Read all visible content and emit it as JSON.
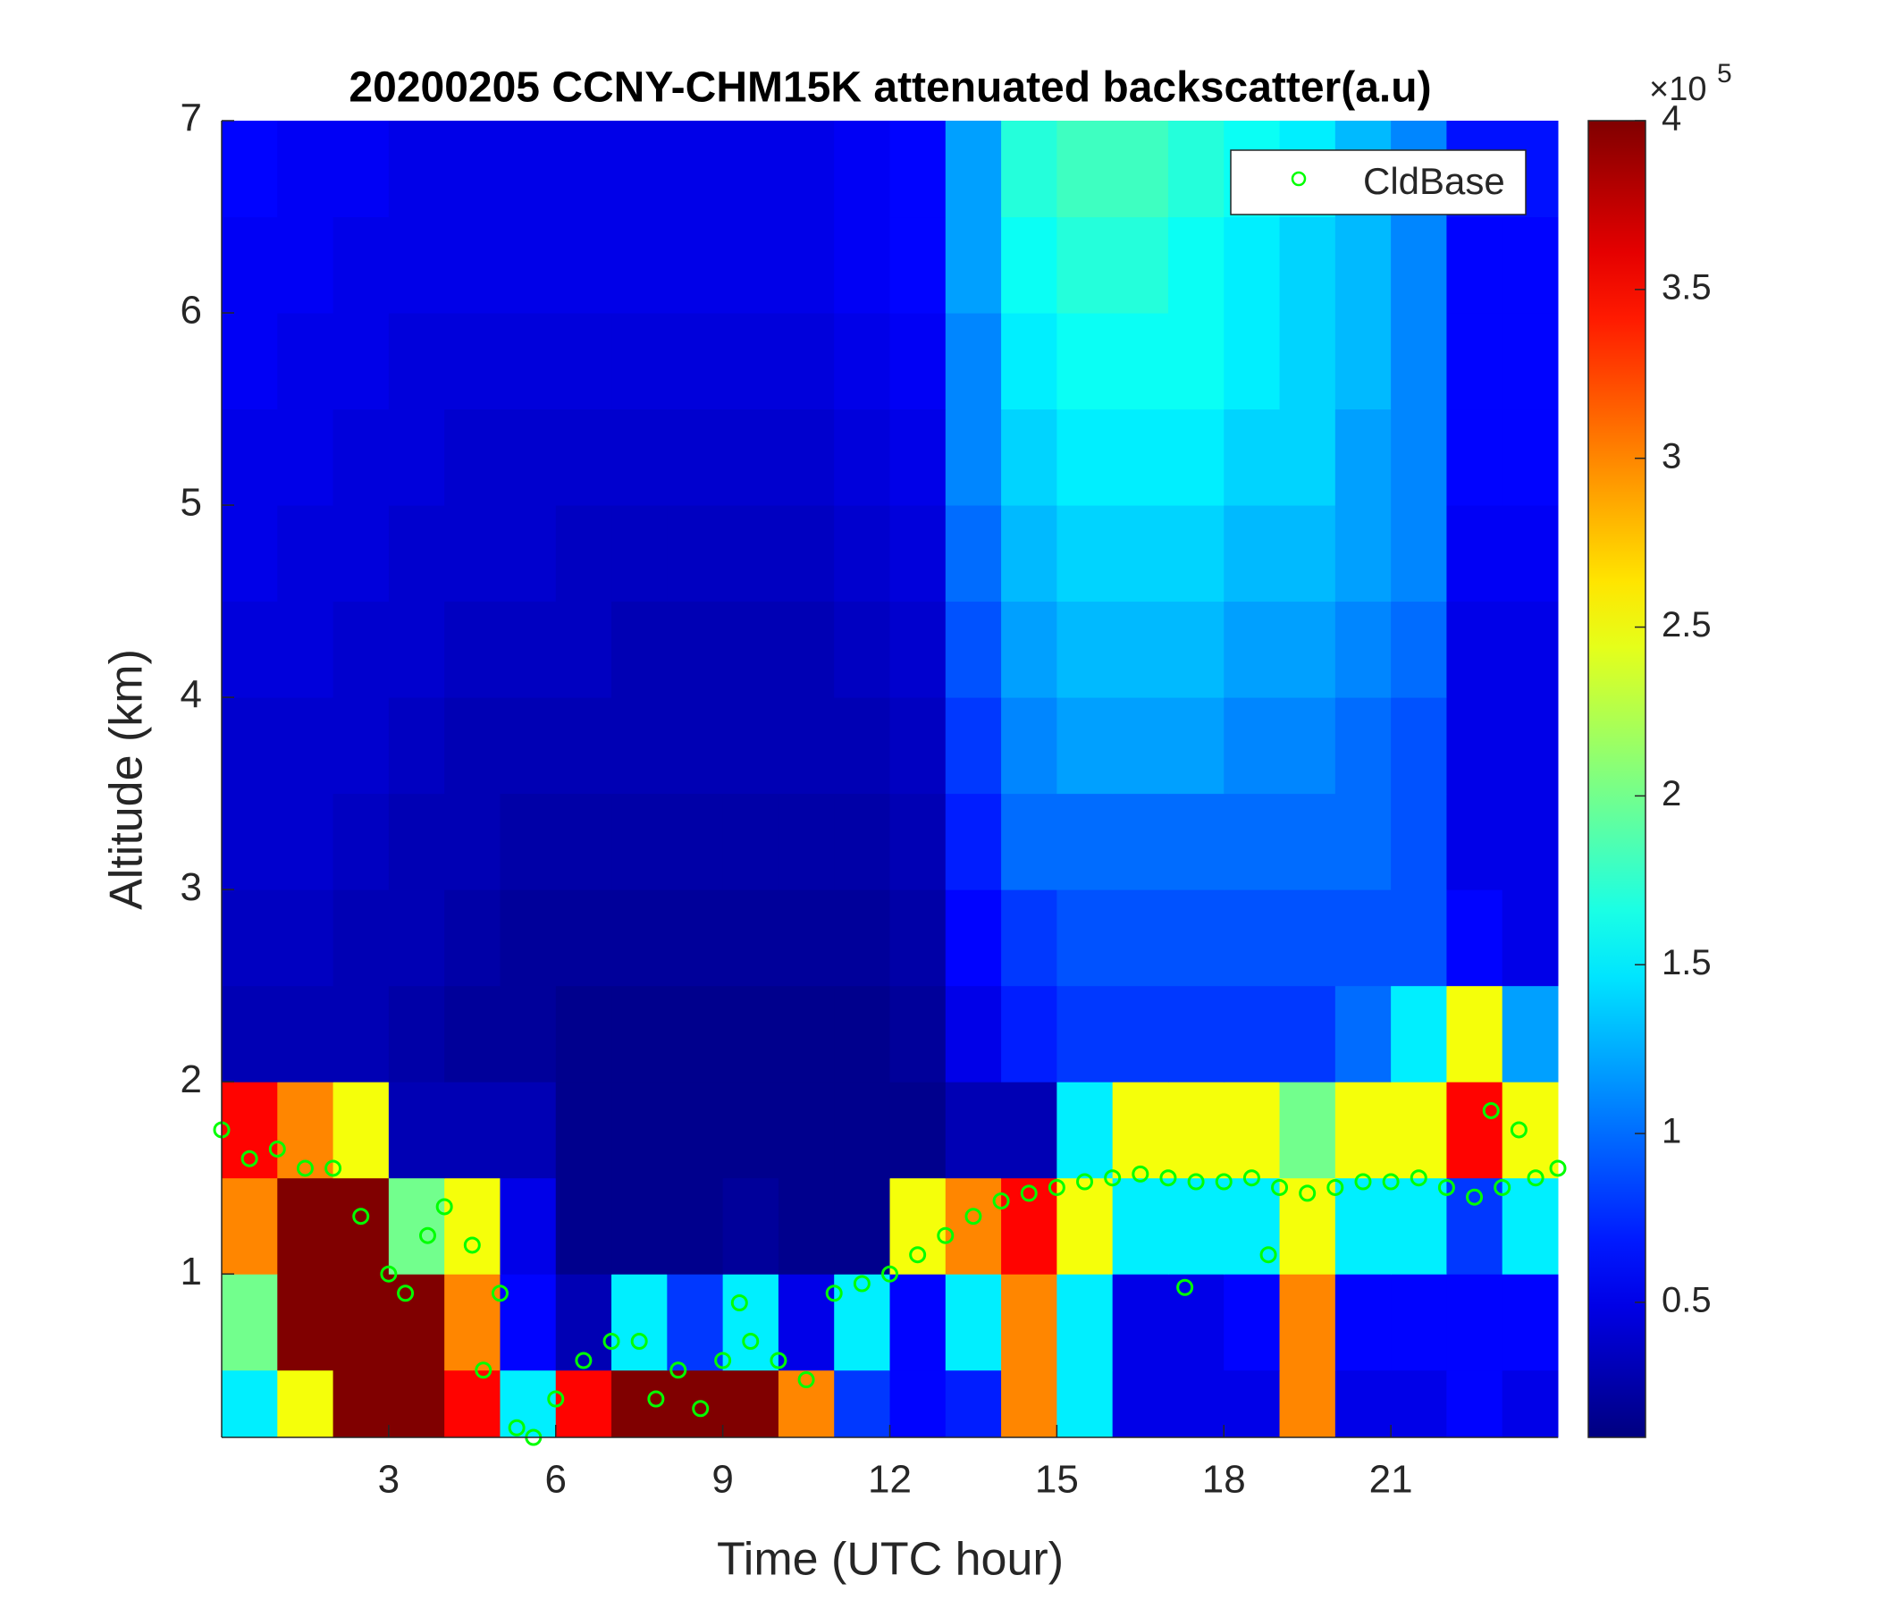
{
  "chart_data": {
    "type": "heatmap",
    "title": "20200205 CCNY-CHM15K attenuated backscatter(a.u)",
    "x_label": "Time (UTC hour)",
    "y_label": "Altitude (km)",
    "xlim": [
      0,
      24
    ],
    "ylim": [
      0.15,
      7
    ],
    "xticks": [
      3,
      6,
      9,
      12,
      15,
      18,
      21
    ],
    "yticks": [
      1,
      2,
      3,
      4,
      5,
      6,
      7
    ],
    "colormap": "jet",
    "clim": [
      0.1,
      4
    ],
    "cticks": [
      0.5,
      1,
      1.5,
      2,
      2.5,
      3,
      3.5,
      4
    ],
    "colorbar_multiplier": {
      "base": "×10",
      "exponent": "5"
    },
    "x_edges": [
      0,
      1,
      2,
      3,
      4,
      5,
      6,
      7,
      8,
      9,
      10,
      11,
      12,
      13,
      14,
      15,
      16,
      17,
      18,
      19,
      20,
      21,
      22,
      23,
      24
    ],
    "y_edges": [
      0.15,
      0.5,
      1,
      1.5,
      2,
      2.5,
      3,
      3.5,
      4,
      4.5,
      5,
      5.5,
      6,
      6.5,
      7
    ],
    "z": [
      [
        1.5,
        2.5,
        4,
        4,
        3.5,
        1.5,
        3.5,
        4,
        4,
        4,
        3,
        0.8,
        0.6,
        0.7,
        3,
        1.5,
        0.5,
        0.5,
        0.5,
        3,
        0.5,
        0.5,
        0.6,
        0.5
      ],
      [
        2,
        4,
        4,
        4,
        3,
        0.6,
        0.3,
        1.5,
        0.8,
        1.5,
        0.5,
        1.5,
        0.6,
        1.5,
        3,
        1.5,
        0.5,
        0.5,
        0.6,
        3,
        0.6,
        0.6,
        0.6,
        0.6
      ],
      [
        3,
        4,
        4,
        2,
        2.5,
        0.5,
        0.15,
        0.15,
        0.15,
        0.2,
        0.15,
        0.15,
        2.5,
        3,
        3.5,
        2.5,
        1.5,
        1.5,
        1.5,
        2.5,
        1.5,
        1.5,
        0.8,
        1.5
      ],
      [
        3.5,
        3,
        2.5,
        0.3,
        0.3,
        0.3,
        0.15,
        0.15,
        0.15,
        0.15,
        0.15,
        0.15,
        0.15,
        0.3,
        0.3,
        1.5,
        2.5,
        2.5,
        2.5,
        2,
        2.5,
        2.5,
        3.5,
        2.5
      ],
      [
        0.3,
        0.3,
        0.3,
        0.25,
        0.2,
        0.2,
        0.15,
        0.15,
        0.15,
        0.15,
        0.15,
        0.15,
        0.2,
        0.5,
        0.7,
        0.8,
        0.8,
        0.8,
        0.8,
        0.8,
        1,
        1.5,
        2.5,
        1.2
      ],
      [
        0.35,
        0.35,
        0.3,
        0.3,
        0.25,
        0.2,
        0.2,
        0.2,
        0.2,
        0.2,
        0.2,
        0.2,
        0.25,
        0.6,
        0.8,
        0.9,
        0.9,
        0.9,
        0.9,
        0.9,
        0.9,
        0.9,
        0.6,
        0.5
      ],
      [
        0.4,
        0.4,
        0.35,
        0.3,
        0.3,
        0.25,
        0.25,
        0.25,
        0.25,
        0.25,
        0.25,
        0.25,
        0.3,
        0.7,
        1,
        1,
        1,
        1,
        1,
        1,
        1,
        0.9,
        0.5,
        0.5
      ],
      [
        0.4,
        0.4,
        0.4,
        0.35,
        0.3,
        0.3,
        0.3,
        0.3,
        0.3,
        0.3,
        0.3,
        0.3,
        0.35,
        0.8,
        1.1,
        1.2,
        1.2,
        1.2,
        1.1,
        1.1,
        1,
        0.9,
        0.5,
        0.5
      ],
      [
        0.45,
        0.45,
        0.4,
        0.4,
        0.35,
        0.35,
        0.35,
        0.3,
        0.3,
        0.3,
        0.3,
        0.35,
        0.4,
        0.9,
        1.2,
        1.3,
        1.3,
        1.3,
        1.2,
        1.2,
        1.1,
        1,
        0.5,
        0.5
      ],
      [
        0.5,
        0.45,
        0.45,
        0.4,
        0.4,
        0.4,
        0.35,
        0.35,
        0.35,
        0.35,
        0.35,
        0.4,
        0.45,
        1,
        1.3,
        1.4,
        1.4,
        1.4,
        1.3,
        1.3,
        1.2,
        1.1,
        0.55,
        0.55
      ],
      [
        0.5,
        0.5,
        0.45,
        0.45,
        0.4,
        0.4,
        0.4,
        0.4,
        0.4,
        0.4,
        0.4,
        0.45,
        0.5,
        1.1,
        1.4,
        1.5,
        1.5,
        1.5,
        1.4,
        1.4,
        1.2,
        1.1,
        0.6,
        0.6
      ],
      [
        0.55,
        0.5,
        0.5,
        0.45,
        0.45,
        0.45,
        0.45,
        0.45,
        0.45,
        0.45,
        0.45,
        0.5,
        0.55,
        1.1,
        1.5,
        1.6,
        1.6,
        1.6,
        1.5,
        1.4,
        1.3,
        1.1,
        0.6,
        0.6
      ],
      [
        0.55,
        0.55,
        0.5,
        0.5,
        0.5,
        0.5,
        0.5,
        0.5,
        0.5,
        0.5,
        0.5,
        0.55,
        0.6,
        1.2,
        1.6,
        1.7,
        1.7,
        1.6,
        1.5,
        1.4,
        1.3,
        1.1,
        0.6,
        0.6
      ],
      [
        0.6,
        0.55,
        0.55,
        0.5,
        0.5,
        0.5,
        0.5,
        0.5,
        0.5,
        0.5,
        0.5,
        0.55,
        0.6,
        1.2,
        1.7,
        1.8,
        1.8,
        1.7,
        1.6,
        1.5,
        1.3,
        1.1,
        0.65,
        0.65
      ]
    ],
    "series": [
      {
        "name": "CldBase",
        "color": "#00ff00",
        "x": [
          0,
          0.5,
          1,
          1.5,
          2,
          2.5,
          3,
          3.3,
          3.7,
          4,
          4.5,
          4.7,
          5,
          5.3,
          5.6,
          6,
          6.5,
          7,
          7.5,
          7.8,
          8.2,
          8.6,
          9,
          9.3,
          9.5,
          10,
          10.5,
          11,
          11.5,
          12,
          12.5,
          13,
          13.5,
          14,
          14.5,
          15,
          15.5,
          16,
          16.5,
          17,
          17.3,
          17.5,
          18,
          18.5,
          18.8,
          19,
          19.5,
          20,
          20.5,
          21,
          21.5,
          22,
          22.5,
          22.8,
          23,
          23.3,
          23.6,
          24
        ],
        "values": [
          1.75,
          1.6,
          1.65,
          1.55,
          1.55,
          1.3,
          1.0,
          0.9,
          1.2,
          1.35,
          1.15,
          0.5,
          0.9,
          0.2,
          0.15,
          0.35,
          0.55,
          0.65,
          0.65,
          0.35,
          0.5,
          0.3,
          0.55,
          0.85,
          0.65,
          0.55,
          0.45,
          0.9,
          0.95,
          1.0,
          1.1,
          1.2,
          1.3,
          1.38,
          1.42,
          1.45,
          1.48,
          1.5,
          1.52,
          1.5,
          0.93,
          1.48,
          1.48,
          1.5,
          1.1,
          1.45,
          1.42,
          1.45,
          1.48,
          1.48,
          1.5,
          1.45,
          1.4,
          1.85,
          1.45,
          1.75,
          1.5,
          1.55
        ]
      }
    ],
    "legend": "northeast"
  }
}
